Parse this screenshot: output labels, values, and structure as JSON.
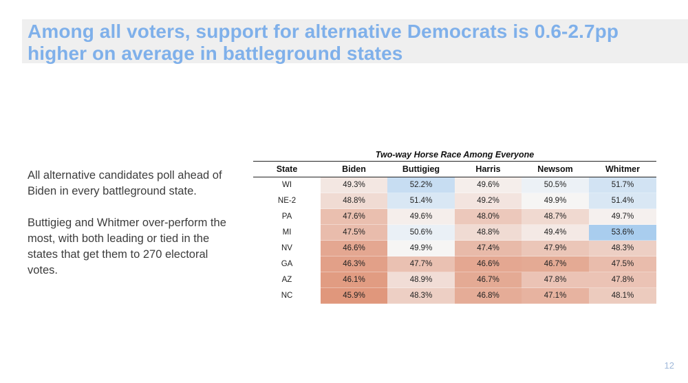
{
  "slide": {
    "title": "Among all voters, support for alternative Democrats is 0.6-2.7pp higher on average in battleground states",
    "paragraphs": [
      "All alternative candidates poll ahead of Biden in every battleground state.",
      "Buttigieg and Whitmer over-perform the most, with both leading or tied in the states that get them to 270 electoral votes."
    ],
    "page_number": "12"
  },
  "chart_data": {
    "type": "table",
    "title": "Two-way Horse Race Among Everyone",
    "columns": [
      "State",
      "Biden",
      "Buttigieg",
      "Harris",
      "Newsom",
      "Whitmer"
    ],
    "rows": [
      {
        "state": "WI",
        "values": [
          49.3,
          52.2,
          49.6,
          50.5,
          51.7
        ],
        "labels": [
          "49.3%",
          "52.2%",
          "49.6%",
          "50.5%",
          "51.7%"
        ]
      },
      {
        "state": "NE-2",
        "values": [
          48.8,
          51.4,
          49.2,
          49.9,
          51.4
        ],
        "labels": [
          "48.8%",
          "51.4%",
          "49.2%",
          "49.9%",
          "51.4%"
        ]
      },
      {
        "state": "PA",
        "values": [
          47.6,
          49.6,
          48.0,
          48.7,
          49.7
        ],
        "labels": [
          "47.6%",
          "49.6%",
          "48.0%",
          "48.7%",
          "49.7%"
        ]
      },
      {
        "state": "MI",
        "values": [
          47.5,
          50.6,
          48.8,
          49.4,
          53.6
        ],
        "labels": [
          "47.5%",
          "50.6%",
          "48.8%",
          "49.4%",
          "53.6%"
        ]
      },
      {
        "state": "NV",
        "values": [
          46.6,
          49.9,
          47.4,
          47.9,
          48.3
        ],
        "labels": [
          "46.6%",
          "49.9%",
          "47.4%",
          "47.9%",
          "48.3%"
        ]
      },
      {
        "state": "GA",
        "values": [
          46.3,
          47.7,
          46.6,
          46.7,
          47.5
        ],
        "labels": [
          "46.3%",
          "47.7%",
          "46.6%",
          "46.7%",
          "47.5%"
        ]
      },
      {
        "state": "AZ",
        "values": [
          46.1,
          48.9,
          46.7,
          47.8,
          47.8
        ],
        "labels": [
          "46.1%",
          "48.9%",
          "46.7%",
          "47.8%",
          "47.8%"
        ]
      },
      {
        "state": "NC",
        "values": [
          45.9,
          48.3,
          46.8,
          47.1,
          48.1
        ],
        "labels": [
          "45.9%",
          "48.3%",
          "46.8%",
          "47.1%",
          "48.1%"
        ]
      }
    ],
    "color_scale": {
      "low_color": "#e0977c",
      "mid_color": "#f7f7f7",
      "high_color": "#a9cdee",
      "midpoint": 50
    }
  }
}
